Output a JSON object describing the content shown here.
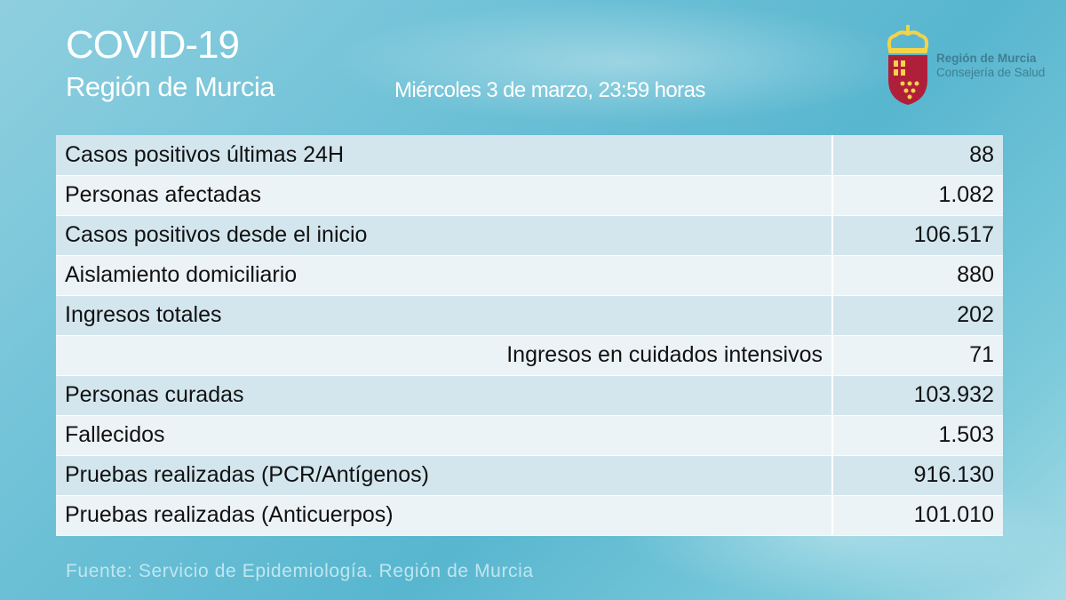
{
  "header": {
    "title": "COVID-19",
    "subtitle": "Región de Murcia",
    "date": "Miércoles 3 de marzo, 23:59 horas"
  },
  "logo": {
    "line1": "Región de Murcia",
    "line2": "Consejería de Salud",
    "colors": {
      "shield": "#b01f3a",
      "crown": "#f3d34a"
    }
  },
  "rows": [
    {
      "label": "Casos positivos últimas 24H",
      "value": "88"
    },
    {
      "label": "Personas afectadas",
      "value": "1.082"
    },
    {
      "label": "Casos positivos desde el inicio",
      "value": "106.517"
    },
    {
      "label": "Aislamiento domiciliario",
      "value": "880"
    },
    {
      "label": "Ingresos totales",
      "value": "202"
    },
    {
      "label": "Ingresos en cuidados intensivos",
      "value": "71",
      "indent": true
    },
    {
      "label": "Personas curadas",
      "value": "103.932"
    },
    {
      "label": "Fallecidos",
      "value": "1.503"
    },
    {
      "label": "Pruebas realizadas (PCR/Antígenos)",
      "value": "916.130"
    },
    {
      "label": "Pruebas realizadas (Anticuerpos)",
      "value": "101.010"
    }
  ],
  "footer": "Fuente: Servicio de Epidemiología. Región de Murcia"
}
